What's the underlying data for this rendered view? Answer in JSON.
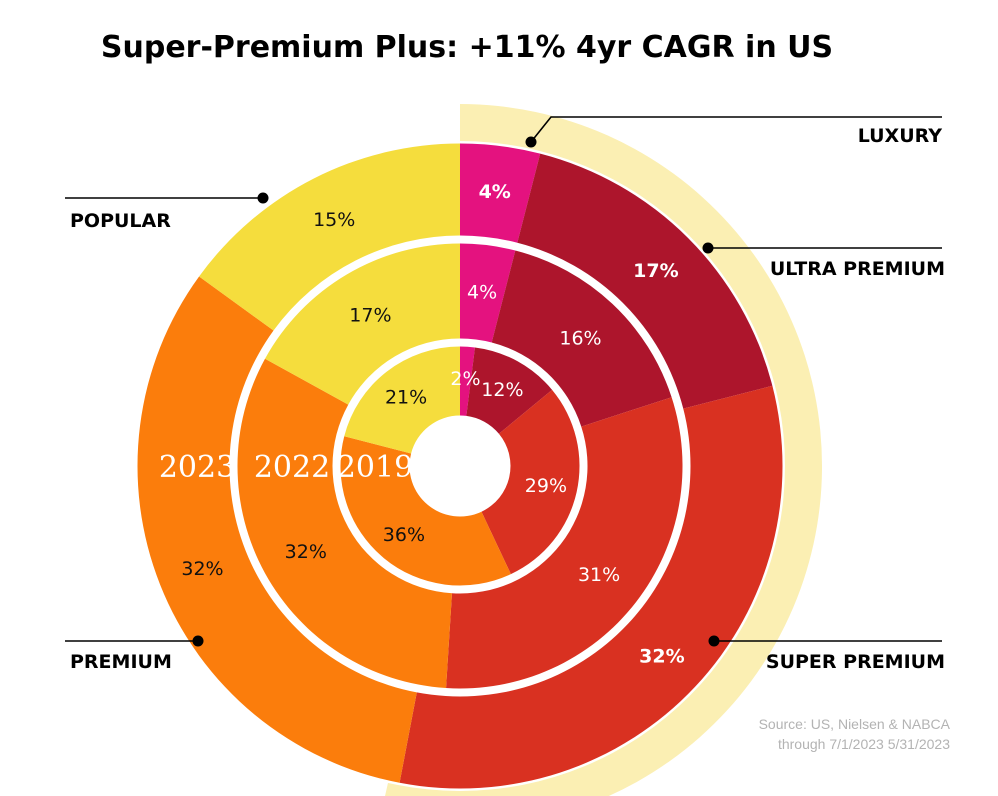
{
  "chart_data": {
    "type": "pie",
    "subtype": "nested-donut",
    "title": "Super-Premium Plus: +11% 4yr CAGR in US",
    "categories": [
      "LUXURY",
      "ULTRA PREMIUM",
      "SUPER PREMIUM",
      "PREMIUM",
      "POPULAR"
    ],
    "colors": {
      "LUXURY": "#e4127f",
      "ULTRA PREMIUM": "#ad152c",
      "SUPER PREMIUM": "#d93121",
      "PREMIUM": "#fb7d0c",
      "POPULAR": "#f5dd3d",
      "highlight": "#fbefb3"
    },
    "highlight": "Super-Premium Plus (LUXURY + ULTRA PREMIUM + SUPER PREMIUM)",
    "series": [
      {
        "name": "2023",
        "values": [
          4,
          17,
          32,
          32,
          15
        ],
        "labels": [
          "4%",
          "17%",
          "32%",
          "32%",
          "15%"
        ]
      },
      {
        "name": "2022",
        "values": [
          4,
          16,
          31,
          32,
          17
        ],
        "labels": [
          "4%",
          "16%",
          "31%",
          "32%",
          "17%"
        ]
      },
      {
        "name": "2019",
        "values": [
          2,
          12,
          29,
          36,
          21
        ],
        "labels": [
          "2%",
          "12%",
          "29%",
          "36%",
          "21%"
        ]
      }
    ],
    "legend": [
      "POPULAR",
      "PREMIUM",
      "LUXURY",
      "ULTRA PREMIUM",
      "SUPER PREMIUM"
    ],
    "source": [
      "Source: US, Nielsen & NABCA",
      "through 7/1/2023 5/31/2023"
    ]
  }
}
